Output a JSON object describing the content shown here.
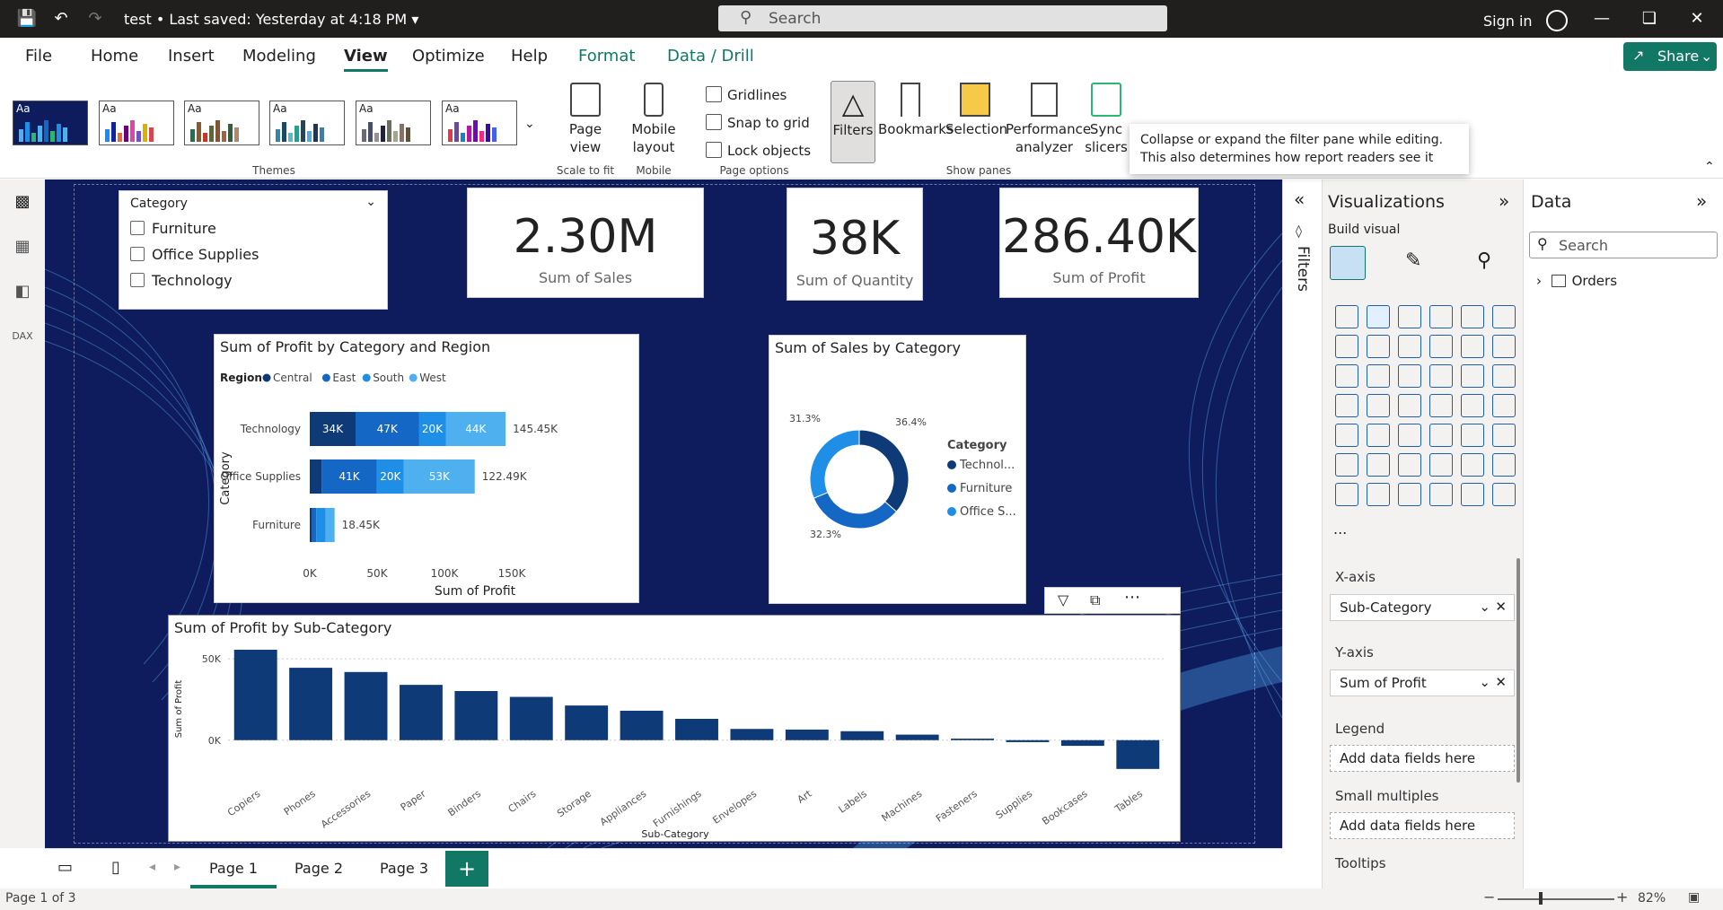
{
  "titlebar": {
    "doc_title": "test • Last saved: Yesterday at 4:18 PM",
    "search_placeholder": "Search",
    "signin": "Sign in"
  },
  "menu": {
    "file": "File",
    "home": "Home",
    "insert": "Insert",
    "modeling": "Modeling",
    "view": "View",
    "optimize": "Optimize",
    "help": "Help",
    "format": "Format",
    "data_drill": "Data / Drill",
    "share": "Share"
  },
  "ribbon": {
    "themes_label": "Themes",
    "theme_aa": "Aa",
    "page_view": "Page view",
    "scale_to_fit": "Scale to fit",
    "mobile_layout": "Mobile layout",
    "mobile": "Mobile",
    "gridlines": "Gridlines",
    "snap_to_grid": "Snap to grid",
    "lock_objects": "Lock objects",
    "page_options": "Page options",
    "filters": "Filters",
    "bookmarks": "Bookmarks",
    "selection": "Selection",
    "performance_analyzer": "Performance analyzer",
    "sync_slicers": "Sync slicers",
    "show_panes": "Show panes",
    "tooltip": "Collapse or expand the filter pane while editing. This also determines how report readers see it"
  },
  "slicer": {
    "title": "Category",
    "items": [
      "Furniture",
      "Office Supplies",
      "Technology"
    ]
  },
  "kpis": [
    {
      "value": "2.30M",
      "label": "Sum of Sales"
    },
    {
      "value": "38K",
      "label": "Sum of Quantity"
    },
    {
      "value": "286.40K",
      "label": "Sum of Profit"
    }
  ],
  "chart_data": [
    {
      "type": "bar",
      "orientation": "horizontal-stacked",
      "title": "Sum of Profit by Category and Region",
      "legend_title": "Region",
      "xlabel": "Sum of Profit",
      "ylabel": "Category",
      "categories": [
        "Technology",
        "Office Supplies",
        "Furniture"
      ],
      "series": [
        {
          "name": "Central",
          "values": [
            34000,
            8880,
            1800
          ],
          "labels": [
            "34K",
            "",
            ""
          ]
        },
        {
          "name": "East",
          "values": [
            47000,
            41000,
            3000
          ],
          "labels": [
            "47K",
            "41K",
            ""
          ]
        },
        {
          "name": "South",
          "values": [
            20000,
            20000,
            7000
          ],
          "labels": [
            "20K",
            "20K",
            ""
          ]
        },
        {
          "name": "West",
          "values": [
            44450,
            52610,
            6650
          ],
          "labels": [
            "44K",
            "53K",
            ""
          ]
        }
      ],
      "totals": [
        "145.45K",
        "122.49K",
        "18.45K"
      ],
      "xticks": [
        "0K",
        "50K",
        "100K",
        "150K"
      ],
      "xlim": [
        0,
        150000
      ],
      "colors": [
        "#0e3a78",
        "#1467c4",
        "#1f8ee6",
        "#4fb0f0"
      ]
    },
    {
      "type": "pie",
      "subtype": "donut",
      "title": "Sum of Sales by Category",
      "legend_title": "Category",
      "categories": [
        "Technol...",
        "Furniture",
        "Office S..."
      ],
      "values": [
        36.4,
        32.3,
        31.3
      ],
      "labels": [
        "36.4%",
        "32.3%",
        "31.3%"
      ],
      "colors": [
        "#0e3a78",
        "#1467c4",
        "#1f8ee6"
      ]
    },
    {
      "type": "bar",
      "title": "Sum of Profit by Sub-Category",
      "xlabel": "Sub-Category",
      "ylabel": "Sum of Profit",
      "categories": [
        "Copiers",
        "Phones",
        "Accessories",
        "Paper",
        "Binders",
        "Chairs",
        "Storage",
        "Appliances",
        "Furnishings",
        "Envelopes",
        "Art",
        "Labels",
        "Machines",
        "Fasteners",
        "Supplies",
        "Bookcases",
        "Tables"
      ],
      "values": [
        55600,
        44500,
        41900,
        34000,
        30200,
        26600,
        21300,
        18100,
        13100,
        6900,
        6500,
        5500,
        3400,
        950,
        -1200,
        -3500,
        -17700
      ],
      "yticks": [
        "50K",
        "0K"
      ],
      "ylim": [
        -20000,
        60000
      ],
      "color": "#0e3a78"
    }
  ],
  "filters_label": "Filters",
  "viz": {
    "title": "Visualizations",
    "build_visual": "Build visual",
    "x_axis": "X-axis",
    "x_field": "Sub-Category",
    "y_axis": "Y-axis",
    "y_field": "Sum of Profit",
    "legend": "Legend",
    "small_multiples": "Small multiples",
    "tooltips": "Tooltips",
    "add_fields": "Add data fields here",
    "more": "..."
  },
  "data_pane": {
    "title": "Data",
    "search_placeholder": "Search",
    "table": "Orders"
  },
  "pages": {
    "tabs": [
      "Page 1",
      "Page 2",
      "Page 3"
    ],
    "add": "+"
  },
  "status": {
    "page": "Page 1 of 3",
    "zoom": "82%"
  }
}
